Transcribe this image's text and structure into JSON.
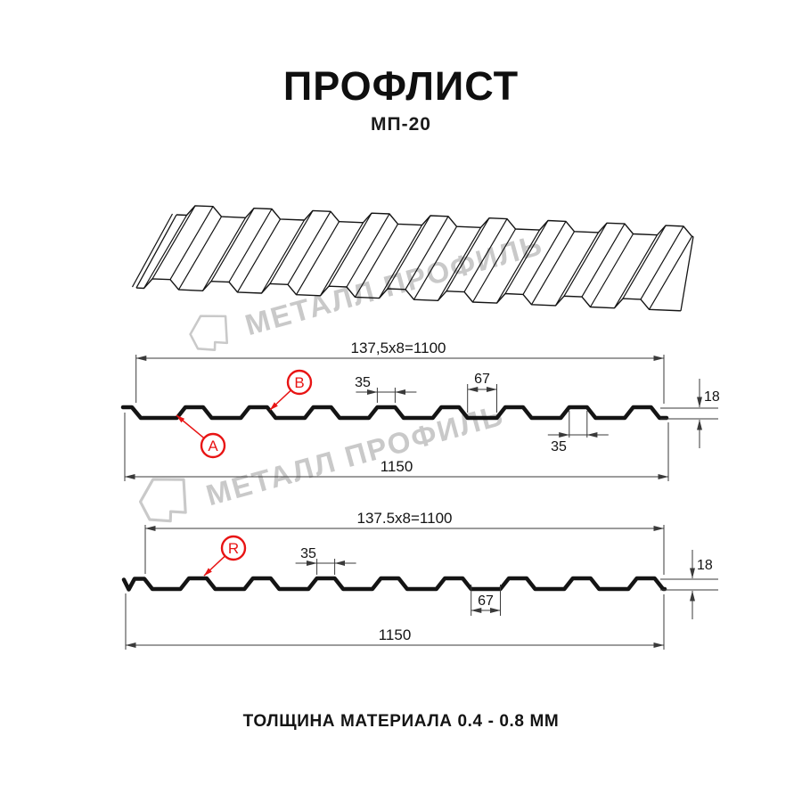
{
  "header": {
    "title": "ПРОФЛИСТ",
    "subtitle": "МП-20"
  },
  "watermark": {
    "text": "МЕТАЛЛ ПРОФИЛЬ",
    "logo": "metal-profil-mark"
  },
  "footer": {
    "text": "ТОЛЩИНА МАТЕРИАЛА 0.4 - 0.8 ММ"
  },
  "colors": {
    "ink": "#141414",
    "dim_line": "#3a3a3a",
    "red": "#e81414",
    "watermark": "#c9c9c9",
    "background": "#ffffff"
  },
  "front_view": {
    "title_dim": "137,5x8=1100",
    "crest_width": "35",
    "valley_width": "67",
    "height": "18",
    "crest_width_bottom": "35",
    "overall_width": "1150",
    "point_labels": [
      "B",
      "A"
    ]
  },
  "reverse_view": {
    "title_dim": "137.5x8=1100",
    "crest_width": "35",
    "valley_width": "67",
    "height": "18",
    "overall_width": "1150",
    "point_labels": [
      "R"
    ]
  }
}
